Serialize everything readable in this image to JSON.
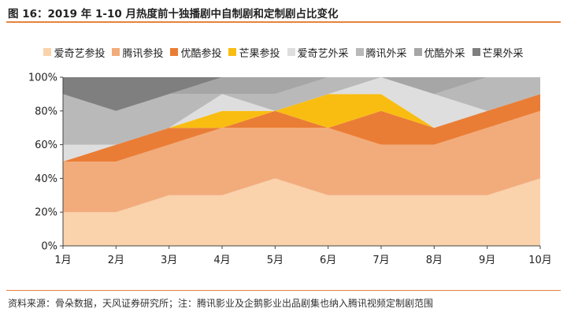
{
  "title": "图 16：2019 年 1-10 月热度前十独播剧中自制剧和定制剧占比变化",
  "source_note": "资料来源：骨朵数据，天风证券研究所；注：腾讯影业及企鹅影业出品剧集也纳入腾讯视频定制剧范围",
  "chart_data": {
    "type": "area",
    "stacked": true,
    "categories": [
      "1月",
      "2月",
      "3月",
      "4月",
      "5月",
      "6月",
      "7月",
      "8月",
      "9月",
      "10月"
    ],
    "yticks": [
      "0%",
      "20%",
      "40%",
      "60%",
      "80%",
      "100%"
    ],
    "ylim": [
      0,
      100
    ],
    "legend_position": "top",
    "series": [
      {
        "name": "爱奇艺参投",
        "color": "#fad2ac",
        "values": [
          20,
          20,
          30,
          30,
          40,
          30,
          30,
          30,
          30,
          40
        ]
      },
      {
        "name": "腾讯参投",
        "color": "#f2ac7c",
        "values": [
          30,
          30,
          30,
          40,
          30,
          40,
          30,
          30,
          40,
          40
        ]
      },
      {
        "name": "优酷参投",
        "color": "#ea7d35",
        "values": [
          0,
          10,
          10,
          0,
          10,
          0,
          20,
          10,
          10,
          10
        ]
      },
      {
        "name": "芒果参投",
        "color": "#f9bd12",
        "values": [
          0,
          0,
          0,
          10,
          0,
          20,
          10,
          0,
          0,
          0
        ]
      },
      {
        "name": "爱奇艺外采",
        "color": "#dedede",
        "values": [
          10,
          0,
          0,
          10,
          0,
          0,
          10,
          20,
          0,
          0
        ]
      },
      {
        "name": "腾讯外采",
        "color": "#b9b9b9",
        "values": [
          30,
          20,
          20,
          0,
          10,
          10,
          0,
          0,
          20,
          10
        ]
      },
      {
        "name": "优酷外采",
        "color": "#a6a6a6",
        "values": [
          0,
          0,
          0,
          10,
          10,
          0,
          0,
          10,
          0,
          0
        ]
      },
      {
        "name": "芒果外采",
        "color": "#7f7f7f",
        "values": [
          10,
          20,
          10,
          0,
          0,
          0,
          0,
          0,
          0,
          0
        ]
      }
    ]
  }
}
